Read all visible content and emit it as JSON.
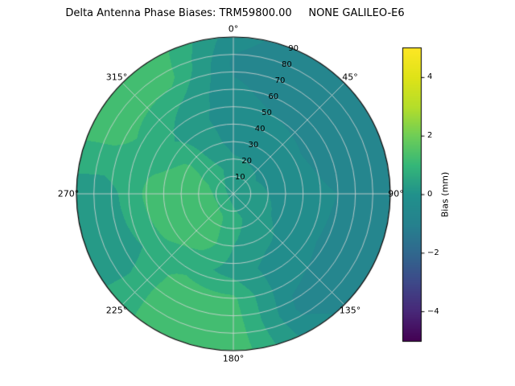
{
  "chart_data": {
    "type": "heatmap",
    "projection": "polar",
    "title": "Delta Antenna Phase Biases: TRM59800.00     NONE GALILEO-E6",
    "azimuth_labels": [
      "0°",
      "45°",
      "90°",
      "135°",
      "180°",
      "225°",
      "270°",
      "315°"
    ],
    "radial_ticks": [
      10,
      20,
      30,
      40,
      50,
      60,
      70,
      80,
      90
    ],
    "radial_range": [
      0,
      90
    ],
    "radial_tick_azimuth_deg": 22.5,
    "grid": true,
    "grid_color": "#d6d6d6",
    "levels_step": 0.5,
    "azimuth_deg": [
      0,
      30,
      60,
      90,
      120,
      150,
      180,
      210,
      240,
      270,
      300,
      330
    ],
    "radius": [
      0,
      15,
      30,
      45,
      60,
      75,
      90
    ],
    "values": [
      [
        0.3,
        0.2,
        -0.2,
        -0.3,
        -0.4,
        -0.6,
        -0.3
      ],
      [
        0.3,
        0.1,
        -0.3,
        -0.4,
        -0.7,
        -0.8,
        -0.8
      ],
      [
        0.3,
        0.0,
        -0.3,
        -0.5,
        -0.8,
        -0.9,
        -0.7
      ],
      [
        0.3,
        0.1,
        -0.2,
        -0.4,
        -0.5,
        -0.8,
        -1.0
      ],
      [
        0.3,
        0.2,
        -0.1,
        -0.3,
        -0.6,
        -0.9,
        -0.9
      ],
      [
        0.3,
        0.4,
        0.2,
        -0.2,
        -0.4,
        -0.6,
        -0.3
      ],
      [
        0.3,
        0.7,
        0.5,
        0.3,
        1.1,
        1.3,
        1.4
      ],
      [
        0.3,
        1.1,
        1.3,
        0.7,
        1.2,
        1.4,
        1.3
      ],
      [
        0.3,
        1.3,
        1.4,
        1.1,
        0.5,
        0.2,
        0.3
      ],
      [
        0.3,
        1.2,
        1.4,
        1.3,
        0.7,
        0.2,
        0.2
      ],
      [
        0.3,
        0.9,
        1.1,
        0.7,
        0.9,
        1.3,
        1.4
      ],
      [
        0.3,
        0.6,
        0.3,
        0.2,
        0.5,
        1.2,
        1.3
      ]
    ],
    "colorbar": {
      "label": "Bias (mm)",
      "min": -5,
      "max": 5,
      "ticks": [
        4,
        2,
        0,
        -2,
        -4
      ],
      "tick_labels": [
        "4",
        "2",
        "0",
        "−2",
        "−4"
      ]
    },
    "colormap": {
      "name": "viridis",
      "stops": [
        [
          0.0,
          "#440154"
        ],
        [
          0.1,
          "#482878"
        ],
        [
          0.2,
          "#3e4989"
        ],
        [
          0.3,
          "#31688e"
        ],
        [
          0.4,
          "#26828e"
        ],
        [
          0.5,
          "#21918c"
        ],
        [
          0.6,
          "#35b779"
        ],
        [
          0.7,
          "#6ece58"
        ],
        [
          0.8,
          "#b5de2b"
        ],
        [
          0.9,
          "#dfe318"
        ],
        [
          1.0,
          "#fde725"
        ]
      ]
    }
  }
}
